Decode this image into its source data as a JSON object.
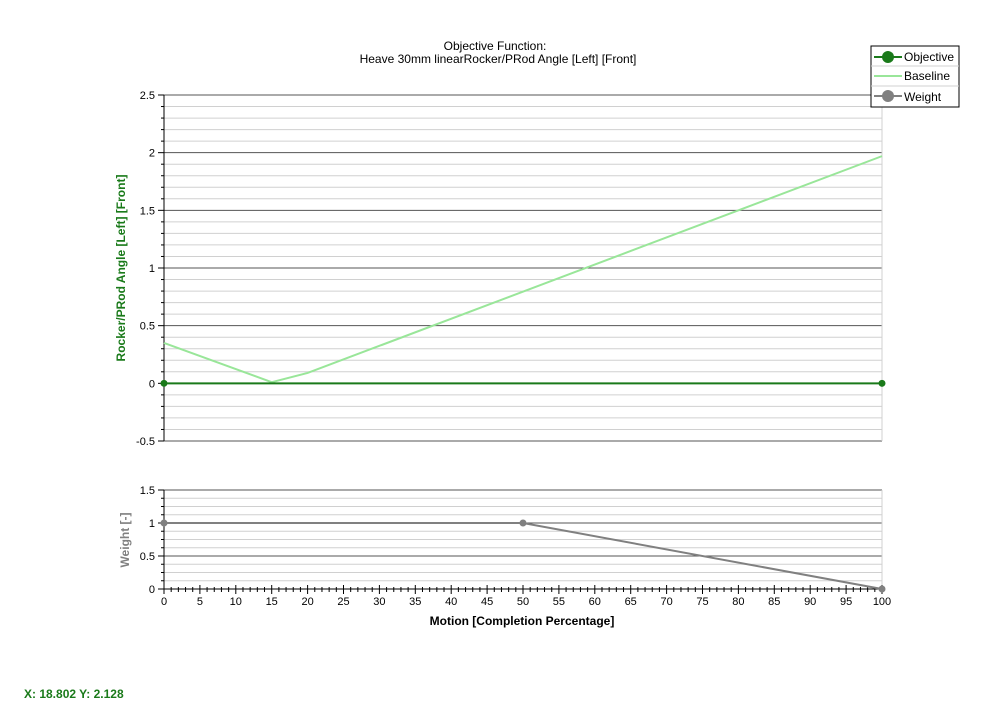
{
  "chart_data": [
    {
      "type": "line",
      "title": "Objective Function:",
      "subtitle": "Heave 30mm linearRocker/PRod Angle [Left] [Front]",
      "xlabel": "",
      "ylabel": "Rocker/PRod Angle [Left] [Front]",
      "xlim": [
        0,
        100
      ],
      "ylim": [
        -0.5,
        2.5
      ],
      "y_ticks": [
        "2.5",
        "2",
        "1.5",
        "1",
        "0.5",
        "0",
        "-0.5"
      ],
      "grid": true,
      "legend_position": "top-right",
      "series": [
        {
          "name": "Objective",
          "color": "#1a7a1a",
          "markers": true,
          "x": [
            0,
            100
          ],
          "y": [
            0,
            0
          ]
        },
        {
          "name": "Baseline",
          "color": "#99e699",
          "markers": false,
          "x": [
            0,
            15,
            20,
            100
          ],
          "y": [
            0.35,
            0.01,
            0.09,
            1.97
          ]
        }
      ]
    },
    {
      "type": "line",
      "title": "",
      "xlabel": "Motion [Completion Percentage]",
      "ylabel": "Weight [-]",
      "xlim": [
        0,
        100
      ],
      "ylim": [
        0,
        1.5
      ],
      "x_ticks": [
        "0",
        "5",
        "10",
        "15",
        "20",
        "25",
        "30",
        "35",
        "40",
        "45",
        "50",
        "55",
        "60",
        "65",
        "70",
        "75",
        "80",
        "85",
        "90",
        "95",
        "100"
      ],
      "y_ticks": [
        "1.5",
        "1",
        "0.5",
        "0"
      ],
      "grid": true,
      "series": [
        {
          "name": "Weight",
          "color": "#808080",
          "markers": true,
          "x": [
            0,
            50,
            100
          ],
          "y": [
            1,
            1,
            0
          ]
        }
      ]
    }
  ],
  "colors": {
    "objective": "#1a7a1a",
    "baseline": "#99e699",
    "weight": "#808080",
    "grid_major": "#555555",
    "grid_minor": "#d0d0d0"
  },
  "coordinate_readout": "X: 18.802 Y: 2.128"
}
